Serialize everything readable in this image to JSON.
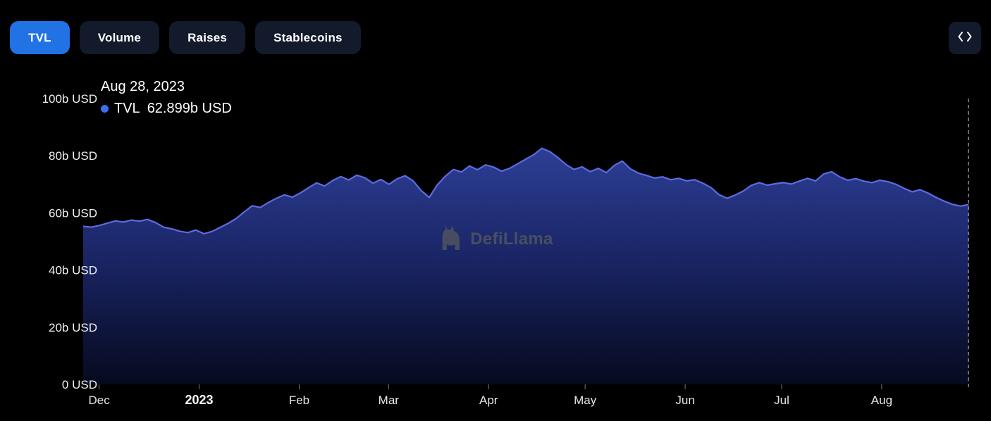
{
  "tabs": [
    {
      "label": "TVL",
      "active": true
    },
    {
      "label": "Volume",
      "active": false
    },
    {
      "label": "Raises",
      "active": false
    },
    {
      "label": "Stablecoins",
      "active": false
    }
  ],
  "toolbar": {
    "expand_icon": "code-chevrons-icon"
  },
  "tooltip": {
    "date": "Aug 28, 2023",
    "series": "TVL",
    "value": "62.899b USD"
  },
  "watermark": {
    "text": "DefiLlama",
    "icon": "llama-icon"
  },
  "colors": {
    "accent": "#2172e5",
    "tab_inactive_bg": "#121a2b",
    "line": "#5c6be0",
    "area_top": "#2e4099",
    "area_mid": "#1a2566",
    "area_bottom": "#070b22",
    "dot": "#3b6ff0",
    "crosshair": "#c9c9c9",
    "watermark": "#51565f"
  },
  "chart_data": {
    "type": "area",
    "title": "TVL",
    "unit": "b USD",
    "ylim": [
      0,
      100
    ],
    "legend": [
      {
        "name": "TVL",
        "color": "#5c6be0"
      }
    ],
    "grid": false,
    "y_ticks": [
      {
        "v": 0,
        "label": "0 USD"
      },
      {
        "v": 20,
        "label": "20b USD"
      },
      {
        "v": 40,
        "label": "40b USD"
      },
      {
        "v": 60,
        "label": "60b USD"
      },
      {
        "v": 80,
        "label": "80b USD"
      },
      {
        "v": 100,
        "label": "100b USD"
      }
    ],
    "x_ticks": [
      {
        "label": "Dec",
        "t": 0.018,
        "bold": false
      },
      {
        "label": "2023",
        "t": 0.131,
        "bold": true
      },
      {
        "label": "Feb",
        "t": 0.244,
        "bold": false
      },
      {
        "label": "Mar",
        "t": 0.345,
        "bold": false
      },
      {
        "label": "Apr",
        "t": 0.458,
        "bold": false
      },
      {
        "label": "May",
        "t": 0.567,
        "bold": false
      },
      {
        "label": "Jun",
        "t": 0.68,
        "bold": false
      },
      {
        "label": "Jul",
        "t": 0.789,
        "bold": false
      },
      {
        "label": "Aug",
        "t": 0.902,
        "bold": false
      }
    ],
    "latest": {
      "date": "Aug 28, 2023",
      "series": "TVL",
      "value_busd": 62.899
    },
    "values": [
      55.3,
      55.0,
      55.6,
      56.4,
      57.2,
      56.8,
      57.5,
      57.1,
      57.7,
      56.6,
      55.0,
      54.4,
      53.6,
      53.1,
      54.0,
      52.7,
      53.5,
      54.9,
      56.3,
      58.0,
      60.3,
      62.5,
      61.9,
      63.6,
      65.1,
      66.3,
      65.5,
      67.0,
      68.8,
      70.5,
      69.4,
      71.3,
      72.7,
      71.5,
      73.2,
      72.3,
      70.4,
      71.7,
      70.0,
      71.9,
      73.0,
      71.2,
      67.8,
      65.4,
      69.8,
      72.8,
      75.2,
      74.3,
      76.4,
      75.1,
      76.8,
      76.0,
      74.6,
      75.6,
      77.2,
      78.8,
      80.4,
      82.6,
      81.4,
      79.3,
      76.9,
      75.2,
      76.1,
      74.4,
      75.6,
      74.1,
      76.6,
      78.1,
      75.4,
      73.9,
      73.1,
      72.2,
      72.6,
      71.6,
      72.1,
      71.2,
      71.6,
      70.4,
      68.9,
      66.4,
      65.1,
      66.2,
      67.6,
      69.6,
      70.6,
      69.7,
      70.2,
      70.6,
      70.1,
      71.1,
      72.1,
      71.2,
      73.6,
      74.4,
      72.6,
      71.4,
      72.0,
      71.1,
      70.6,
      71.4,
      70.9,
      70.0,
      68.6,
      67.4,
      68.1,
      66.9,
      65.4,
      64.1,
      63.0,
      62.4,
      62.899
    ]
  }
}
